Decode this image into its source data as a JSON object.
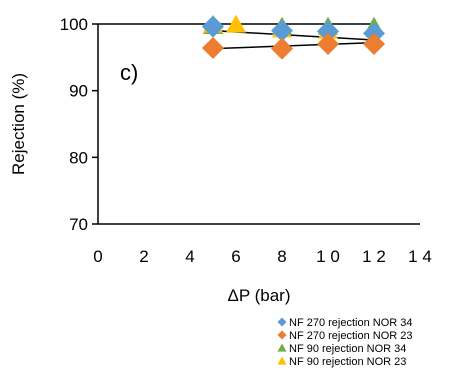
{
  "chart_data": {
    "type": "scatter",
    "panel_label": "c)",
    "xlabel": "ΔP (bar)",
    "ylabel": "Rejection (%)",
    "xlim": [
      0,
      14
    ],
    "ylim": [
      70,
      100
    ],
    "x_ticks": [
      0,
      2,
      4,
      6,
      8,
      10,
      12,
      14
    ],
    "x_tick_labels": [
      "0",
      "2",
      "4",
      "6",
      "8",
      "1 0",
      "1 2",
      "1 4"
    ],
    "y_ticks": [
      70,
      80,
      90,
      100
    ],
    "y_tick_labels": [
      "70",
      "80",
      "90",
      "100"
    ],
    "grid": false,
    "legend_position": "bottom-right",
    "series": [
      {
        "name": "NF 270 rejection NOR 34",
        "marker": "diamond",
        "color": "#5B9BD5",
        "points": [
          [
            5,
            99.6
          ],
          [
            8,
            99.0
          ],
          [
            10,
            98.9
          ],
          [
            12,
            98.6
          ]
        ]
      },
      {
        "name": "NF 270 rejection NOR 23",
        "marker": "diamond",
        "color": "#ED7D31",
        "points": [
          [
            5,
            96.4
          ],
          [
            8,
            96.3
          ],
          [
            10,
            97.0
          ],
          [
            12,
            97.0
          ]
        ]
      },
      {
        "name": "NF 90  rejection NOR 34",
        "marker": "triangle",
        "color": "#70AD47",
        "series_color_alt": "#A5A5A5",
        "points": [
          [
            5,
            99.7
          ],
          [
            8,
            99.6
          ],
          [
            10,
            99.6
          ],
          [
            12,
            99.6
          ]
        ]
      },
      {
        "name": "NF 90 rejection NOR 23",
        "marker": "triangle",
        "color": "#FFC000",
        "points": [
          [
            5,
            99.9
          ],
          [
            6,
            99.9
          ],
          [
            8,
            99.2
          ],
          [
            10,
            99.0
          ]
        ]
      }
    ],
    "trend_lines": [
      {
        "from": [
          5,
          99.0
        ],
        "to": [
          12,
          97.6
        ]
      },
      {
        "from": [
          5,
          96.3
        ],
        "to": [
          12,
          97.2
        ]
      }
    ]
  }
}
